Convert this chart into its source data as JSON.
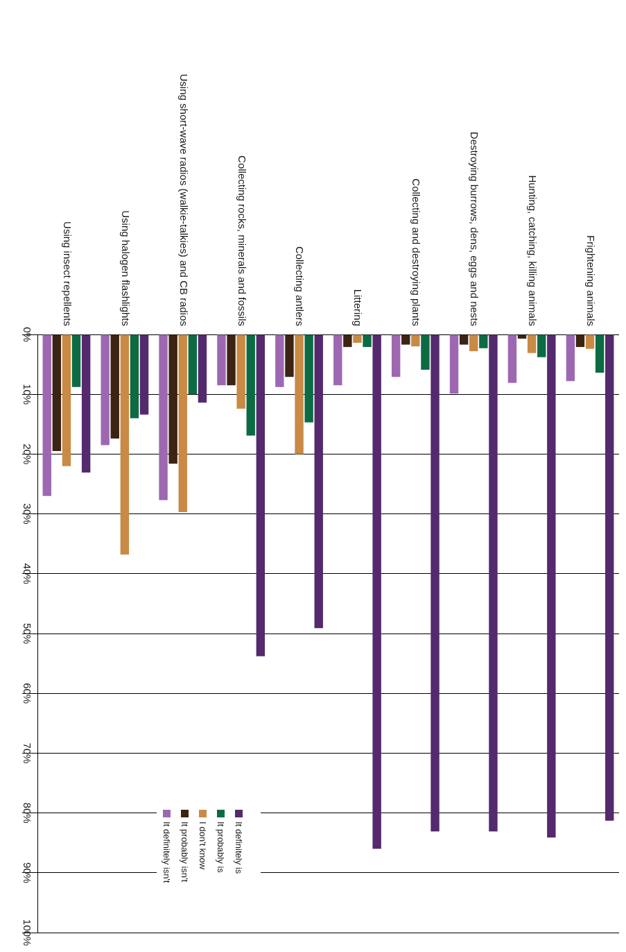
{
  "chart_data": {
    "type": "bar",
    "categories": [
      "Using insect repellents",
      "Using halogen flashlights",
      "Using short-wave radios (walkie-talkies) and CB radios",
      "Collecting rocks, minerals and fossils",
      "Collecting antlers",
      "Littering",
      "Collecting and destroying plants",
      "Destroying burrows, dens, eggs and nests",
      "Hunting, catching, killing animals",
      "Frightening animals"
    ],
    "series": [
      {
        "name": "It definitely isn't",
        "color": "#9d68b1",
        "values": [
          27.0,
          18.5,
          27.7,
          8.5,
          8.8,
          8.5,
          7.1,
          9.9,
          8.1,
          7.8
        ]
      },
      {
        "name": "It probably isn't",
        "color": "#3b2413",
        "values": [
          19.5,
          17.4,
          21.6,
          8.5,
          7.1,
          2.1,
          1.7,
          1.7,
          0.7,
          2.1
        ]
      },
      {
        "name": "I don't know",
        "color": "#c98a45",
        "values": [
          22.0,
          36.8,
          29.7,
          12.4,
          20.0,
          1.4,
          2.0,
          2.8,
          3.1,
          2.4
        ]
      },
      {
        "name": "It probably is",
        "color": "#0c6b43",
        "values": [
          8.8,
          14.0,
          10.0,
          16.9,
          14.7,
          2.1,
          5.9,
          2.3,
          3.8,
          6.4
        ]
      },
      {
        "name": "It definitely is",
        "color": "#55296d",
        "values": [
          23.1,
          13.4,
          11.4,
          53.8,
          49.1,
          86.0,
          83.1,
          83.1,
          84.1,
          81.3
        ]
      }
    ],
    "ylim": [
      100,
      0
    ],
    "yticks": [
      {
        "value": 0,
        "label": "0%"
      },
      {
        "value": 10,
        "label": "10%"
      },
      {
        "value": 20,
        "label": "20%"
      },
      {
        "value": 30,
        "label": "30%"
      },
      {
        "value": 40,
        "label": "40%"
      },
      {
        "value": 50,
        "label": "50%"
      },
      {
        "value": 60,
        "label": "60%"
      },
      {
        "value": 70,
        "label": "70%"
      },
      {
        "value": 80,
        "label": "80%"
      },
      {
        "value": 90,
        "label": "90%"
      },
      {
        "value": 100,
        "label": "100%"
      }
    ],
    "grid": "y",
    "legend": "bottom left"
  }
}
